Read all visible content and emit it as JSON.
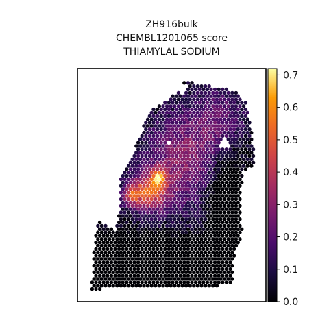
{
  "chart_data": {
    "type": "scatter",
    "subtype": "spatial spot map (hexagonal spots)",
    "title_lines": [
      "ZH916bulk",
      "CHEMBL1201065 score",
      "THIAMYLAL SODIUM"
    ],
    "xlabel": "",
    "ylabel": "",
    "axis_ticks_visible": false,
    "grid": false,
    "colorbar": {
      "colormap": "inferno",
      "range": [
        0.0,
        0.72
      ],
      "tick_values": [
        0.0,
        0.1,
        0.2,
        0.3,
        0.4,
        0.5,
        0.6,
        0.7
      ],
      "tick_labels": [
        "0.0",
        "0.1",
        "0.2",
        "0.3",
        "0.4",
        "0.5",
        "0.6",
        "0.7"
      ],
      "placement": "right"
    },
    "score_regions_estimated": [
      {
        "region": "bottom-left tissue",
        "score": 0.02
      },
      {
        "region": "right-middle tissue",
        "score": 0.05
      },
      {
        "region": "top-right tissue",
        "score": 0.2
      },
      {
        "region": "upper-middle tissue",
        "score": 0.3
      },
      {
        "region": "left-middle hotspot",
        "score": 0.45
      },
      {
        "region": "peak",
        "score": 0.68
      }
    ]
  }
}
